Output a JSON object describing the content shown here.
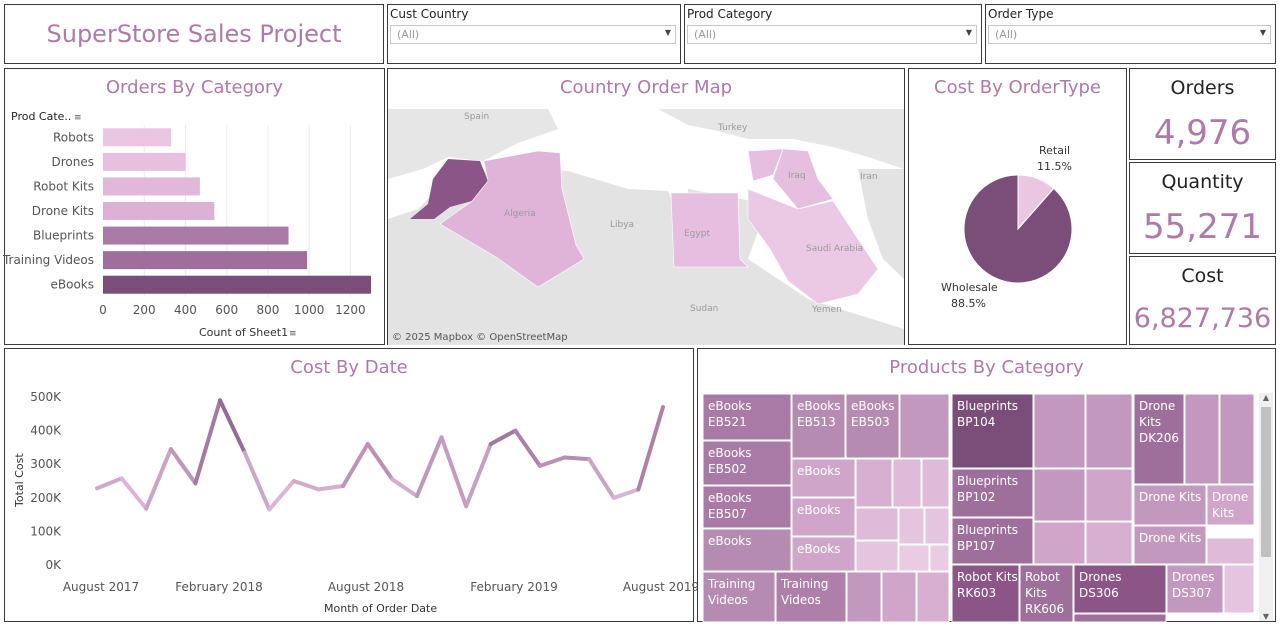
{
  "header": {
    "title": "SuperStore Sales Project"
  },
  "filters": [
    {
      "label": "Cust Country",
      "value": "(All)"
    },
    {
      "label": "Prod Category",
      "value": "(All)"
    },
    {
      "label": "Order Type",
      "value": "(All)"
    }
  ],
  "kpis": {
    "orders": {
      "label": "Orders",
      "value": "4,976"
    },
    "quantity": {
      "label": "Quantity",
      "value": "55,271"
    },
    "cost": {
      "label": "Cost",
      "value": "6,827,736"
    }
  },
  "map": {
    "title": "Country Order Map",
    "attribution": "© 2025 Mapbox © OpenStreetMap",
    "labels": [
      "Spain",
      "Turkey",
      "Iran",
      "Iraq",
      "Algeria",
      "Libya",
      "Egypt",
      "Saudi Arabia",
      "Sudan",
      "Yemen"
    ]
  },
  "colors": {
    "accent": "#b07aa8",
    "dark": "#7a4e79",
    "light": "#eac6e2",
    "map_bg": "#e9e9e9"
  },
  "chart_data": [
    {
      "type": "bar",
      "title": "Orders By Category",
      "header_label": "Prod Cate..",
      "xlabel": "Count of Sheet1",
      "categories": [
        "Robots",
        "Drones",
        "Robot Kits",
        "Drone Kits",
        "Blueprints",
        "Training Videos",
        "eBooks"
      ],
      "values": [
        330,
        400,
        470,
        540,
        900,
        990,
        1300
      ],
      "xticks": [
        "0",
        "200",
        "400",
        "600",
        "800",
        "1000",
        "1200"
      ],
      "xlim": [
        0,
        1300
      ]
    },
    {
      "type": "pie",
      "title": "Cost By OrderType",
      "slices": [
        {
          "label": "Retail",
          "pct_label": "11.5%",
          "value": 11.5
        },
        {
          "label": "Wholesale",
          "pct_label": "88.5%",
          "value": 88.5
        }
      ]
    },
    {
      "type": "line",
      "title": "Cost By Date",
      "xlabel": "Month of Order Date",
      "ylabel": "Total Cost",
      "xticks": [
        "August 2017",
        "February 2018",
        "August 2018",
        "February 2019",
        "August 2019"
      ],
      "yticks": [
        "0K",
        "100K",
        "200K",
        "300K",
        "400K",
        "500K"
      ],
      "ylim": [
        0,
        500000
      ],
      "values": [
        228000,
        258000,
        168000,
        345000,
        243000,
        490000,
        335000,
        165000,
        250000,
        225000,
        235000,
        360000,
        255000,
        205000,
        380000,
        175000,
        360000,
        400000,
        295000,
        320000,
        315000,
        200000,
        225000,
        470000
      ]
    },
    {
      "type": "treemap",
      "title": "Products By Category",
      "labeled_tiles": [
        [
          "eBooks",
          "EB521"
        ],
        [
          "eBooks",
          "EB513"
        ],
        [
          "eBooks",
          "EB503"
        ],
        [
          "eBooks",
          "EB502"
        ],
        [
          "eBooks"
        ],
        [
          "eBooks",
          "EB507"
        ],
        [
          "eBooks"
        ],
        [
          "eBooks"
        ],
        [
          "eBooks"
        ],
        [
          "Training",
          "Videos"
        ],
        [
          "Training",
          "Videos"
        ],
        [
          "Blueprints",
          "BP104"
        ],
        [
          "Blueprints",
          "BP102"
        ],
        [
          "Blueprints",
          "BP107"
        ],
        [
          "Robot Kits",
          "RK603"
        ],
        [
          "Robot",
          "Kits",
          "RK606"
        ],
        [
          "Drones",
          "DS306"
        ],
        [
          "Drones",
          "DS307"
        ],
        [
          "Drone",
          "Kits",
          "DK206"
        ],
        [
          "Drone Kits"
        ],
        [
          "Drone",
          "Kits"
        ],
        [
          "Drone Kits"
        ]
      ]
    }
  ]
}
